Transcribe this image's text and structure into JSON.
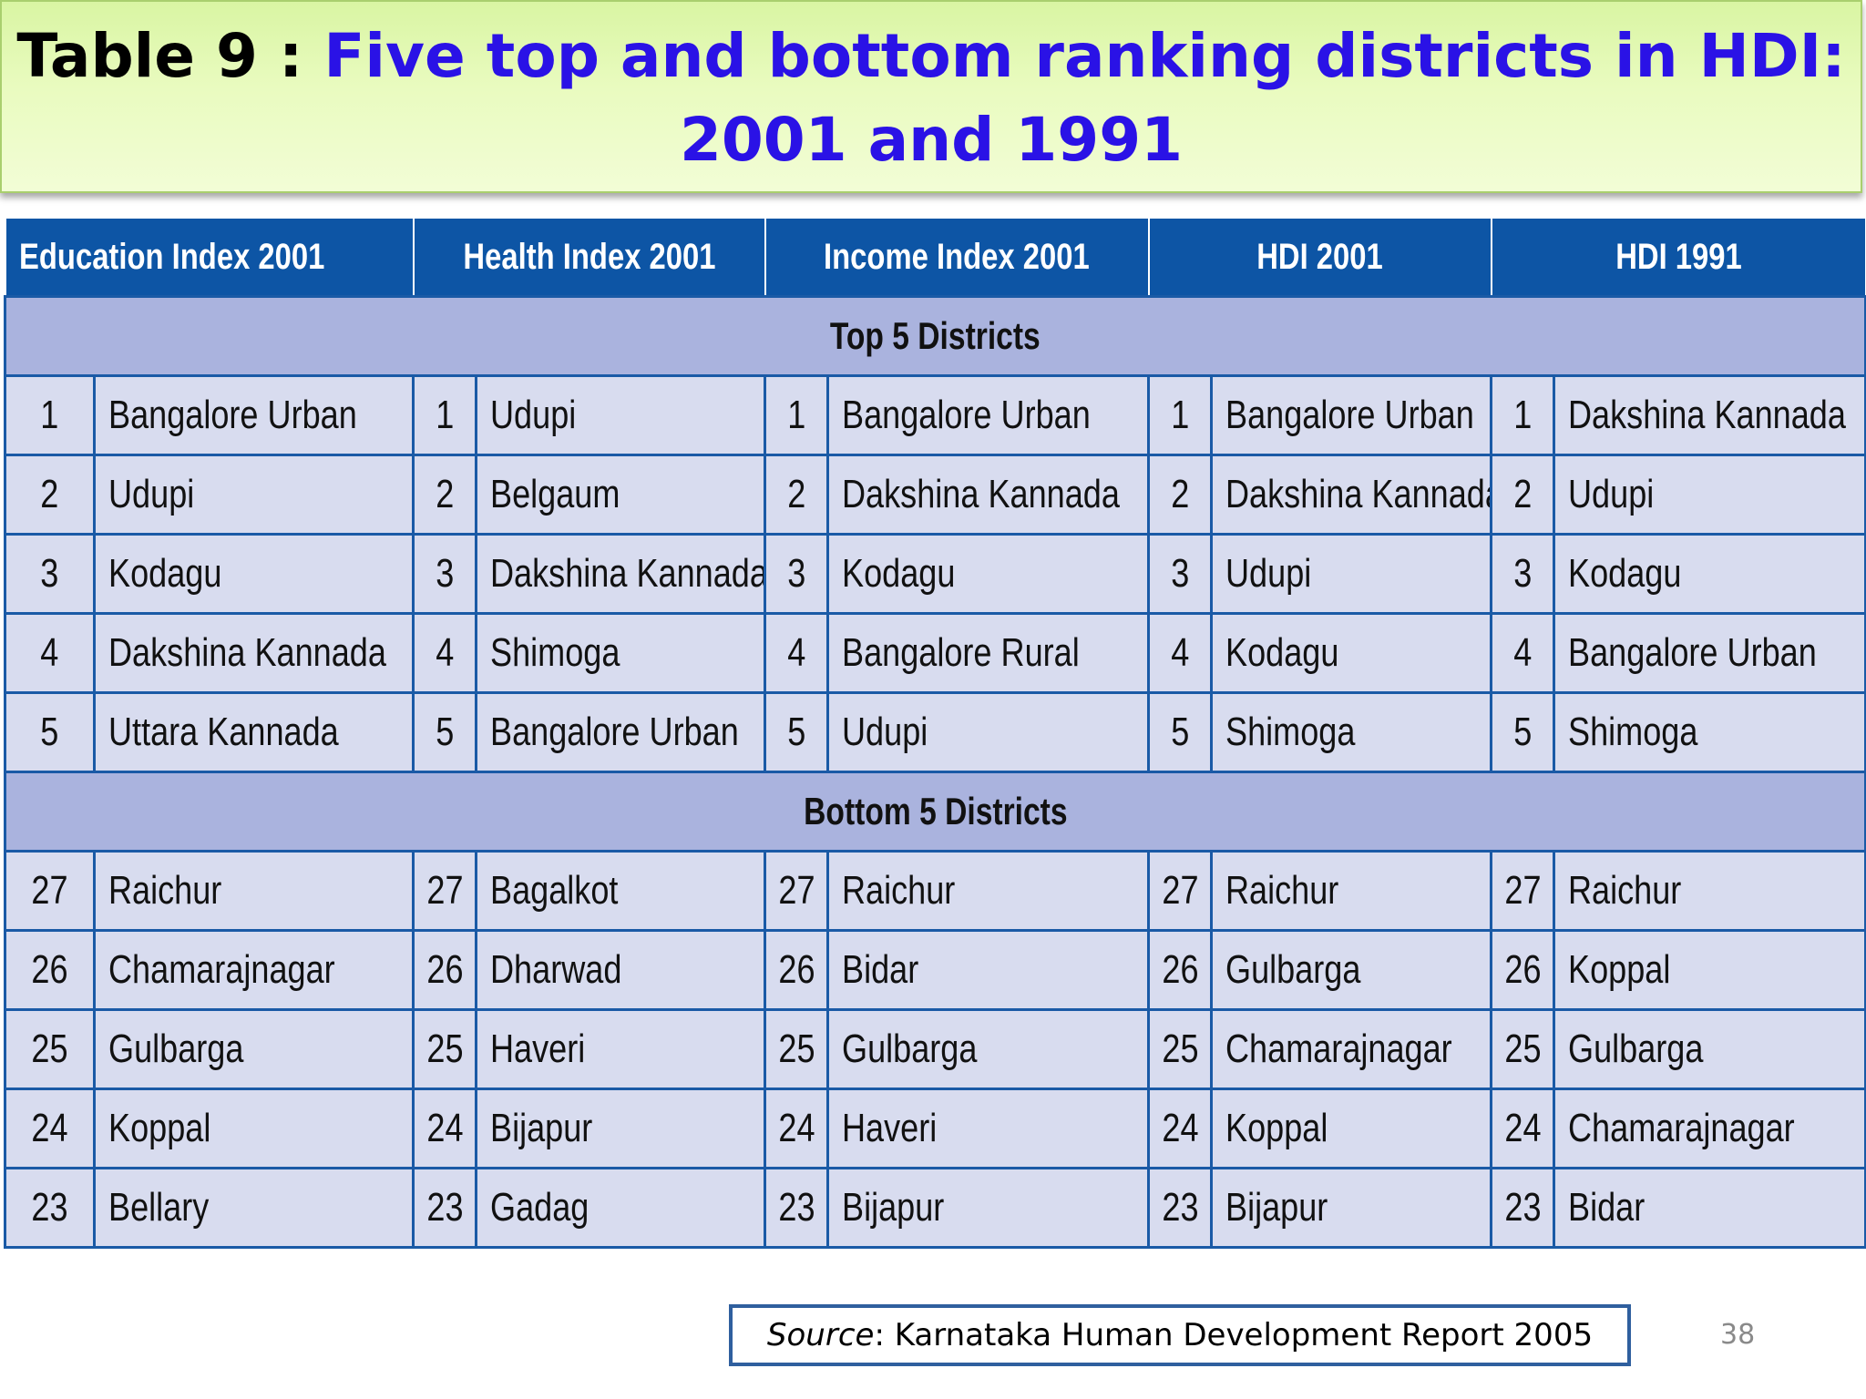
{
  "title": {
    "prefix": "Table 9 : ",
    "main": "Five top and bottom ranking districts in HDI: 2001 and 1991"
  },
  "columns": [
    "Education Index 2001",
    "Health Index 2001",
    "Income Index 2001",
    "HDI 2001",
    "HDI 1991"
  ],
  "sections": [
    {
      "label": "Top 5 Districts",
      "rows": [
        [
          [
            "1",
            "Bangalore Urban"
          ],
          [
            "1",
            "Udupi"
          ],
          [
            "1",
            "Bangalore Urban"
          ],
          [
            "1",
            "Bangalore Urban"
          ],
          [
            "1",
            "Dakshina Kannada"
          ]
        ],
        [
          [
            "2",
            "Udupi"
          ],
          [
            "2",
            "Belgaum"
          ],
          [
            "2",
            "Dakshina Kannada"
          ],
          [
            "2",
            "Dakshina Kannada"
          ],
          [
            "2",
            "Udupi"
          ]
        ],
        [
          [
            "3",
            "Kodagu"
          ],
          [
            "3",
            "Dakshina Kannada"
          ],
          [
            "3",
            "Kodagu"
          ],
          [
            "3",
            "Udupi"
          ],
          [
            "3",
            "Kodagu"
          ]
        ],
        [
          [
            "4",
            "Dakshina Kannada"
          ],
          [
            "4",
            "Shimoga"
          ],
          [
            "4",
            "Bangalore Rural"
          ],
          [
            "4",
            "Kodagu"
          ],
          [
            "4",
            "Bangalore Urban"
          ]
        ],
        [
          [
            "5",
            "Uttara Kannada"
          ],
          [
            "5",
            "Bangalore Urban"
          ],
          [
            "5",
            "Udupi"
          ],
          [
            "5",
            "Shimoga"
          ],
          [
            "5",
            "Shimoga"
          ]
        ]
      ]
    },
    {
      "label": "Bottom 5 Districts",
      "rows": [
        [
          [
            "27",
            "Raichur"
          ],
          [
            "27",
            "Bagalkot"
          ],
          [
            "27",
            "Raichur"
          ],
          [
            "27",
            "Raichur"
          ],
          [
            "27",
            "Raichur"
          ]
        ],
        [
          [
            "26",
            "Chamarajnagar"
          ],
          [
            "26",
            "Dharwad"
          ],
          [
            "26",
            "Bidar"
          ],
          [
            "26",
            "Gulbarga"
          ],
          [
            "26",
            "Koppal"
          ]
        ],
        [
          [
            "25",
            "Gulbarga"
          ],
          [
            "25",
            "Haveri"
          ],
          [
            "25",
            "Gulbarga"
          ],
          [
            "25",
            "Chamarajnagar"
          ],
          [
            "25",
            "Gulbarga"
          ]
        ],
        [
          [
            "24",
            "Koppal"
          ],
          [
            "24",
            "Bijapur"
          ],
          [
            "24",
            "Haveri"
          ],
          [
            "24",
            "Koppal"
          ],
          [
            "24",
            "Chamarajnagar"
          ]
        ],
        [
          [
            "23",
            "Bellary"
          ],
          [
            "23",
            "Gadag"
          ],
          [
            "23",
            "Bijapur"
          ],
          [
            "23",
            "Bijapur"
          ],
          [
            "23",
            "Bidar"
          ]
        ]
      ]
    }
  ],
  "source": {
    "label": "Source",
    "text": ": Karnataka Human Development Report 2005"
  },
  "page_number": "38",
  "colors": {
    "header_bg": "#0d55a5",
    "section_bg": "#aab3de",
    "row_bg": "#d8dcef",
    "title_text": "#2a12e6",
    "title_band": "#e4f9b8"
  }
}
